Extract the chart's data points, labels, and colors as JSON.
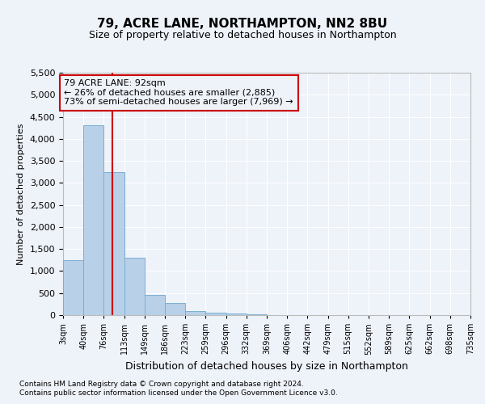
{
  "title": "79, ACRE LANE, NORTHAMPTON, NN2 8BU",
  "subtitle": "Size of property relative to detached houses in Northampton",
  "xlabel": "Distribution of detached houses by size in Northampton",
  "ylabel": "Number of detached properties",
  "footnote1": "Contains HM Land Registry data © Crown copyright and database right 2024.",
  "footnote2": "Contains public sector information licensed under the Open Government Licence v3.0.",
  "bar_color": "#b8d0e8",
  "bar_edge_color": "#7aafd4",
  "bar_heights": [
    1250,
    4300,
    3250,
    1300,
    450,
    270,
    100,
    60,
    30,
    10,
    0,
    0,
    0,
    0,
    0,
    0,
    0,
    0,
    0,
    0
  ],
  "bin_edges": [
    3,
    40,
    76,
    113,
    149,
    186,
    223,
    259,
    296,
    332,
    369,
    406,
    442,
    479,
    515,
    552,
    589,
    625,
    662,
    698,
    735
  ],
  "x_tick_labels": [
    "3sqm",
    "40sqm",
    "76sqm",
    "113sqm",
    "149sqm",
    "186sqm",
    "223sqm",
    "259sqm",
    "296sqm",
    "332sqm",
    "369sqm",
    "406sqm",
    "442sqm",
    "479sqm",
    "515sqm",
    "552sqm",
    "589sqm",
    "625sqm",
    "662sqm",
    "698sqm",
    "735sqm"
  ],
  "ylim": [
    0,
    5500
  ],
  "yticks": [
    0,
    500,
    1000,
    1500,
    2000,
    2500,
    3000,
    3500,
    4000,
    4500,
    5000,
    5500
  ],
  "property_size": 92,
  "vline_color": "#cc0000",
  "annotation_line1": "79 ACRE LANE: 92sqm",
  "annotation_line2": "← 26% of detached houses are smaller (2,885)",
  "annotation_line3": "73% of semi-detached houses are larger (7,969) →",
  "annotation_box_color": "#cc0000",
  "background_color": "#eef2f9",
  "grid_color": "#ffffff",
  "title_fontsize": 11,
  "subtitle_fontsize": 9,
  "xlabel_fontsize": 9,
  "ylabel_fontsize": 8,
  "tick_fontsize": 8,
  "annot_fontsize": 8,
  "footnote_fontsize": 6.5
}
